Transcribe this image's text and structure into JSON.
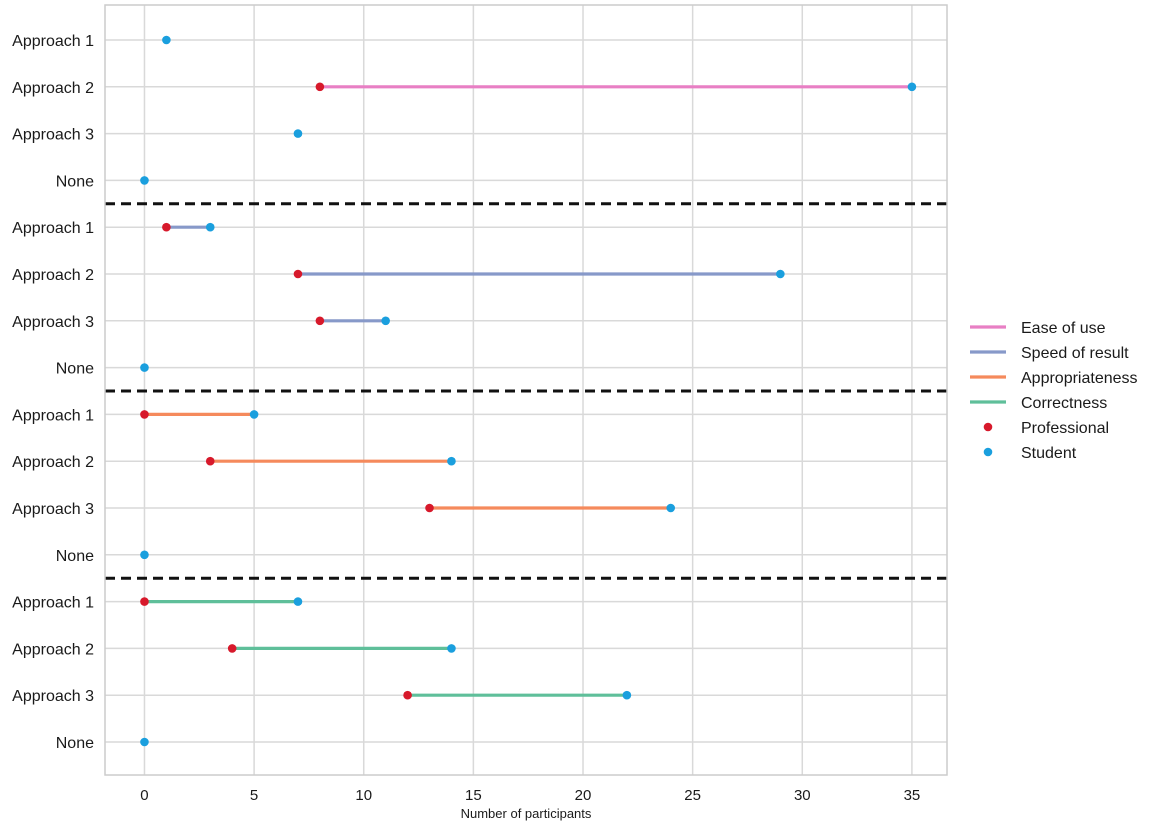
{
  "chart_data": {
    "type": "dumbbell",
    "xlabel": "Number of participants",
    "xlim": [
      -1.8,
      36.6
    ],
    "xticks": [
      0,
      5,
      10,
      15,
      20,
      25,
      30,
      35
    ],
    "grid": true,
    "legend_position": "right",
    "legend": [
      {
        "label": "Ease of use",
        "kind": "line",
        "color": "#e87fc4"
      },
      {
        "label": "Speed of result",
        "kind": "line",
        "color": "#8799c9"
      },
      {
        "label": "Appropriateness",
        "kind": "line",
        "color": "#f58a5c"
      },
      {
        "label": "Correctness",
        "kind": "line",
        "color": "#5fbf9a"
      },
      {
        "label": "Professional",
        "kind": "marker",
        "color": "#d7192b"
      },
      {
        "label": "Student",
        "kind": "marker",
        "color": "#1a9fde"
      }
    ],
    "groups": [
      {
        "name": "Ease of use",
        "color": "#e87fc4",
        "rows": [
          {
            "label": "Approach 1",
            "professional": null,
            "student": 1
          },
          {
            "label": "Approach 2",
            "professional": 8,
            "student": 35
          },
          {
            "label": "Approach 3",
            "professional": null,
            "student": 7
          },
          {
            "label": "None",
            "professional": null,
            "student": 0
          }
        ]
      },
      {
        "name": "Speed of result",
        "color": "#8799c9",
        "rows": [
          {
            "label": "Approach 1",
            "professional": 1,
            "student": 3
          },
          {
            "label": "Approach 2",
            "professional": 7,
            "student": 29
          },
          {
            "label": "Approach 3",
            "professional": 8,
            "student": 11
          },
          {
            "label": "None",
            "professional": null,
            "student": 0
          }
        ]
      },
      {
        "name": "Appropriateness",
        "color": "#f58a5c",
        "rows": [
          {
            "label": "Approach 1",
            "professional": 0,
            "student": 5
          },
          {
            "label": "Approach 2",
            "professional": 3,
            "student": 14
          },
          {
            "label": "Approach 3",
            "professional": 13,
            "student": 24
          },
          {
            "label": "None",
            "professional": null,
            "student": 0
          }
        ]
      },
      {
        "name": "Correctness",
        "color": "#5fbf9a",
        "rows": [
          {
            "label": "Approach 1",
            "professional": 0,
            "student": 7
          },
          {
            "label": "Approach 2",
            "professional": 4,
            "student": 14
          },
          {
            "label": "Approach 3",
            "professional": 12,
            "student": 22
          },
          {
            "label": "None",
            "professional": null,
            "student": 0
          }
        ]
      }
    ]
  }
}
